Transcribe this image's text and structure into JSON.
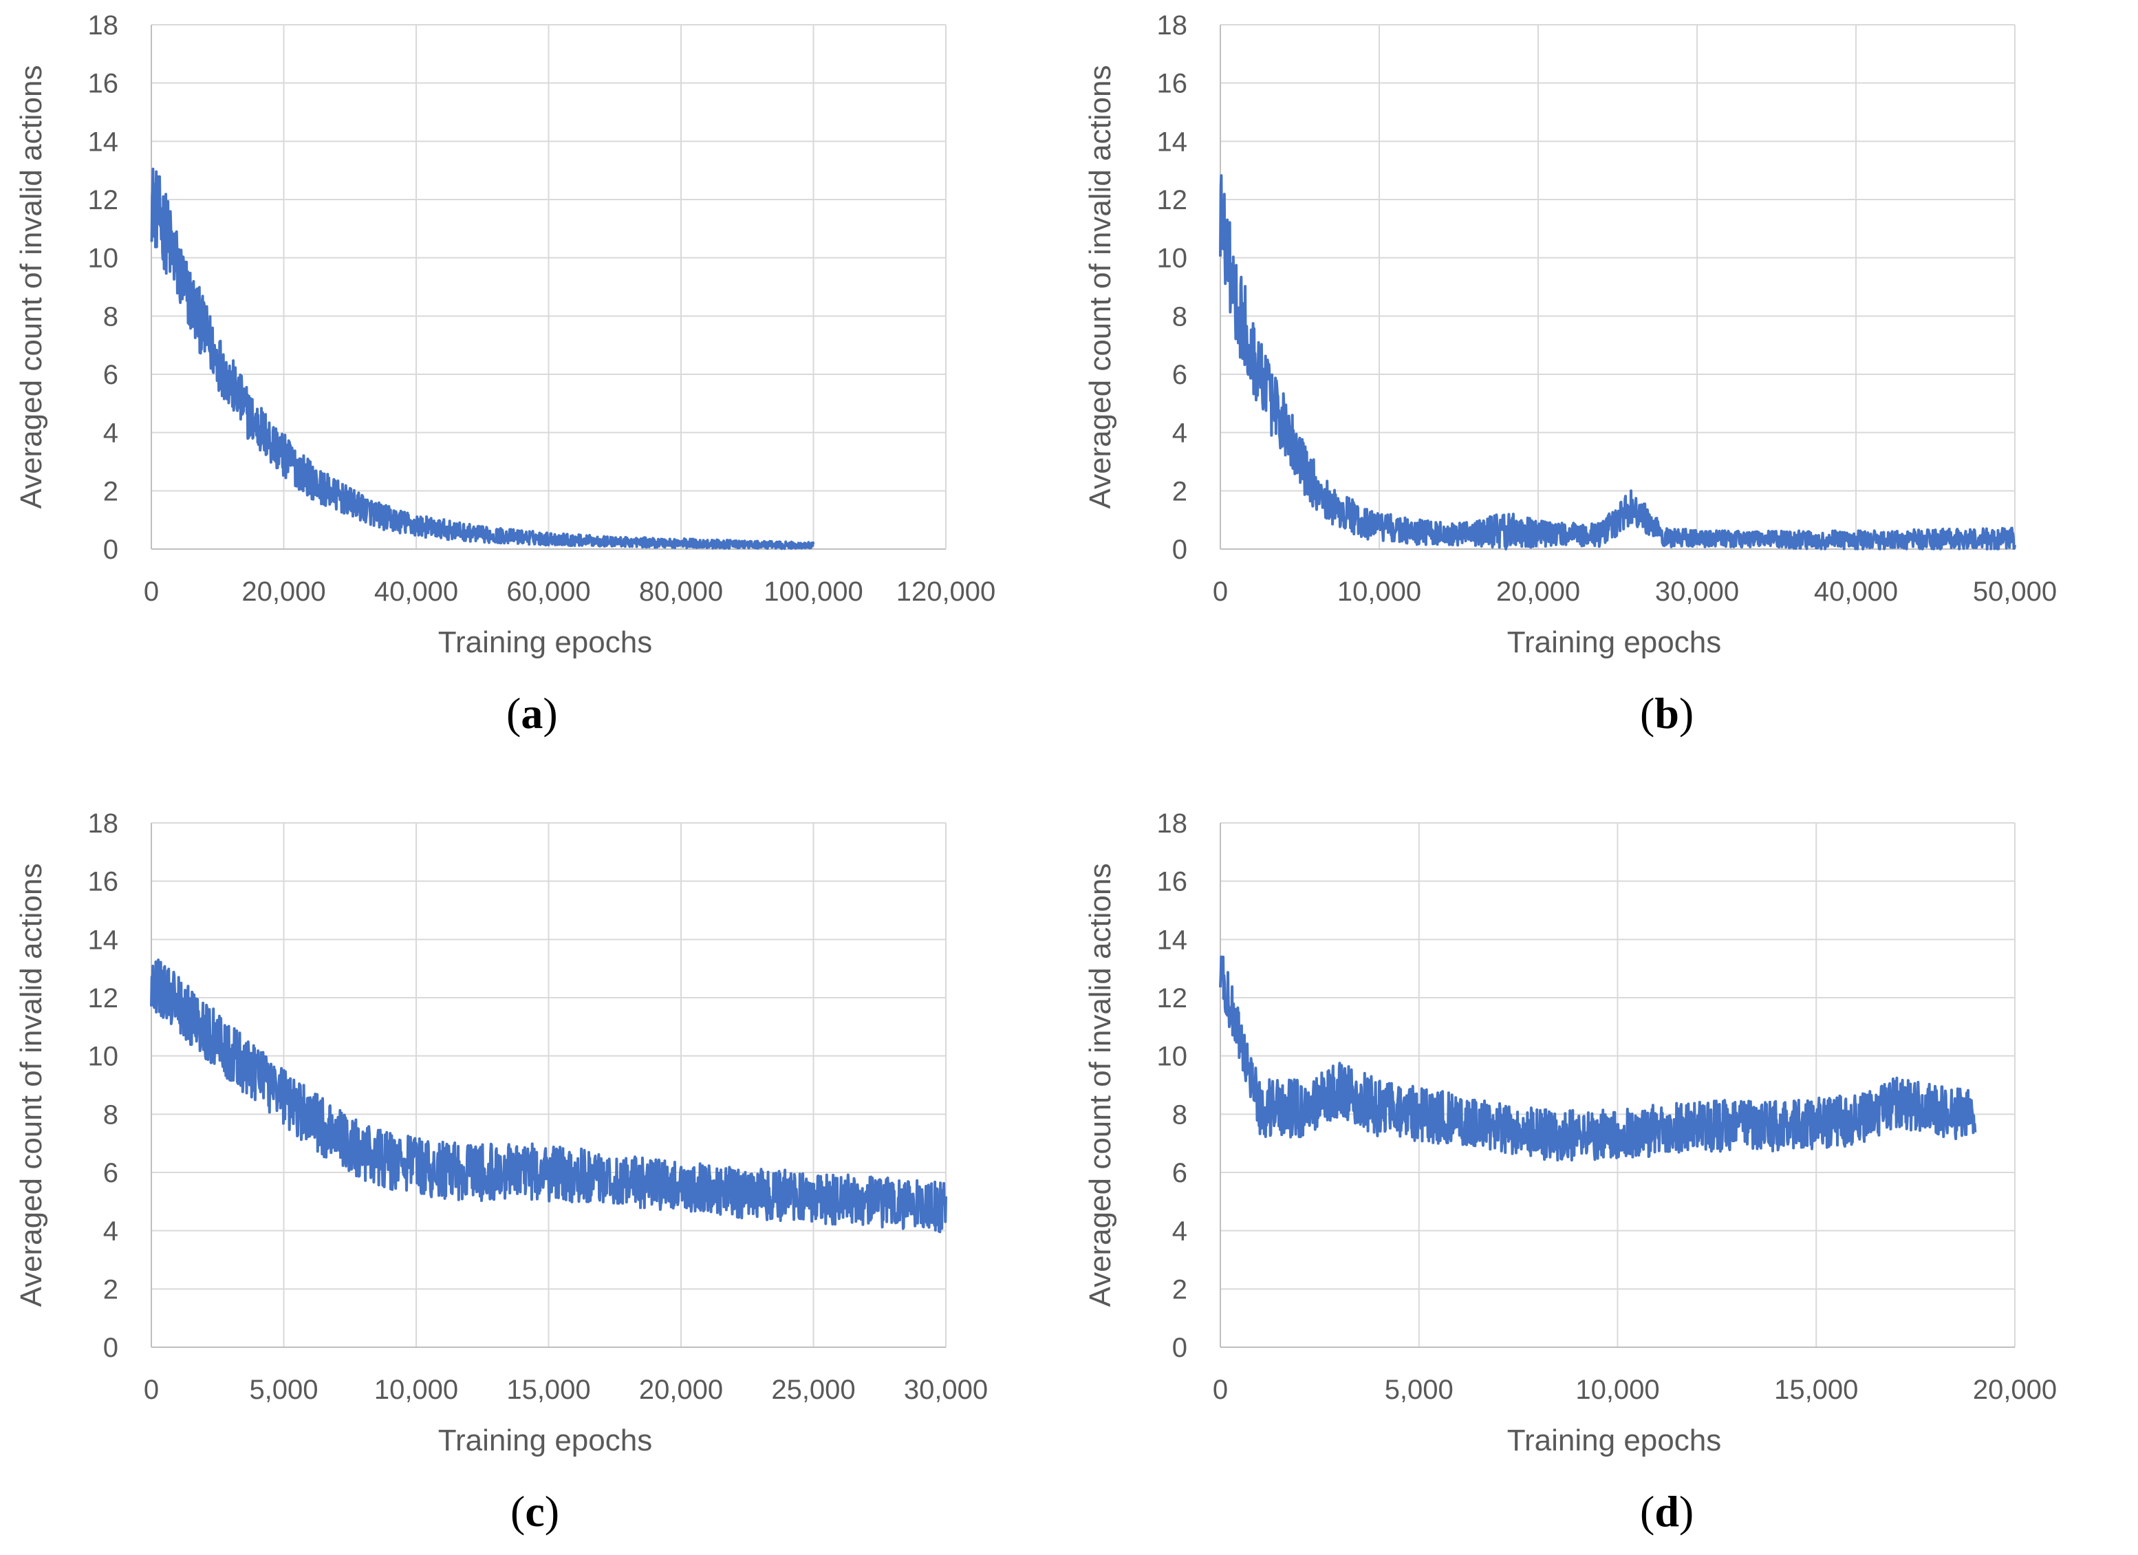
{
  "chart_data": [
    {
      "type": "line",
      "panel_label": "a",
      "xlabel": "Training epochs",
      "ylabel": "Averaged count of invalid actions",
      "xlim": [
        0,
        120000
      ],
      "ylim": [
        0,
        18
      ],
      "xticks": [
        "0",
        "20,000",
        "40,000",
        "60,000",
        "80,000",
        "100,000",
        "120,000"
      ],
      "yticks": [
        "0",
        "2",
        "4",
        "6",
        "8",
        "10",
        "12",
        "14",
        "16",
        "18"
      ],
      "grid": true,
      "series": [
        {
          "name": "Averaged count of invalid actions",
          "x": [
            0,
            2000,
            5000,
            10000,
            15000,
            20000,
            25000,
            30000,
            35000,
            40000,
            50000,
            60000,
            70000,
            80000,
            90000,
            100000
          ],
          "values": [
            12.0,
            11.0,
            9.0,
            6.5,
            4.5,
            3.2,
            2.2,
            1.6,
            1.1,
            0.8,
            0.5,
            0.35,
            0.25,
            0.2,
            0.15,
            0.12
          ],
          "noise": [
            1.3,
            1.3,
            1.1,
            0.9,
            0.8,
            0.7,
            0.55,
            0.45,
            0.4,
            0.35,
            0.25,
            0.2,
            0.15,
            0.15,
            0.12,
            0.1
          ]
        }
      ]
    },
    {
      "type": "line",
      "panel_label": "b",
      "xlabel": "Training epochs",
      "ylabel": "Averaged count of invalid actions",
      "xlim": [
        0,
        50000
      ],
      "ylim": [
        0,
        18
      ],
      "xticks": [
        "0",
        "10,000",
        "20,000",
        "30,000",
        "40,000",
        "50,000"
      ],
      "yticks": [
        "0",
        "2",
        "4",
        "6",
        "8",
        "10",
        "12",
        "14",
        "16",
        "18"
      ],
      "grid": true,
      "series": [
        {
          "name": "Averaged count of invalid actions",
          "x": [
            0,
            1000,
            2500,
            4000,
            5500,
            7000,
            9000,
            12000,
            15000,
            18000,
            21000,
            24000,
            26000,
            28000,
            32000,
            40000,
            50000
          ],
          "values": [
            11.5,
            8.5,
            6.0,
            4.2,
            2.5,
            1.5,
            0.9,
            0.6,
            0.5,
            0.6,
            0.5,
            0.5,
            1.5,
            0.4,
            0.35,
            0.3,
            0.35
          ],
          "noise": [
            1.5,
            1.4,
            1.3,
            1.0,
            0.8,
            0.6,
            0.5,
            0.4,
            0.35,
            0.6,
            0.35,
            0.4,
            0.6,
            0.3,
            0.25,
            0.3,
            0.35
          ]
        }
      ]
    },
    {
      "type": "line",
      "panel_label": "c",
      "xlabel": "Training epochs",
      "ylabel": "Averaged count of invalid actions",
      "xlim": [
        0,
        30000
      ],
      "ylim": [
        0,
        18
      ],
      "xticks": [
        "0",
        "5,000",
        "10,000",
        "15,000",
        "20,000",
        "25,000",
        "30,000"
      ],
      "yticks": [
        "0",
        "2",
        "4",
        "6",
        "8",
        "10",
        "12",
        "14",
        "16",
        "18"
      ],
      "grid": true,
      "series": [
        {
          "name": "Averaged count of invalid actions",
          "x": [
            0,
            1000,
            2500,
            4000,
            5500,
            7000,
            8500,
            10000,
            12000,
            15000,
            18000,
            21000,
            24000,
            27000,
            30000
          ],
          "values": [
            12.5,
            11.8,
            10.5,
            9.3,
            8.2,
            7.2,
            6.5,
            6.2,
            6.0,
            6.0,
            5.7,
            5.4,
            5.2,
            5.0,
            4.8
          ],
          "noise": [
            0.9,
            0.9,
            0.9,
            0.9,
            0.9,
            0.9,
            0.9,
            0.9,
            0.9,
            0.9,
            0.8,
            0.8,
            0.8,
            0.8,
            0.8
          ]
        }
      ]
    },
    {
      "type": "line",
      "panel_label": "d",
      "xlabel": "Training epochs",
      "ylabel": "Averaged count of invalid actions",
      "xlim": [
        0,
        20000
      ],
      "ylim": [
        0,
        18
      ],
      "xticks": [
        "0",
        "5,000",
        "10,000",
        "15,000",
        "20,000"
      ],
      "yticks": [
        "0",
        "2",
        "4",
        "6",
        "8",
        "10",
        "12",
        "14",
        "16",
        "18"
      ],
      "grid": true,
      "series": [
        {
          "name": "Averaged count of invalid actions",
          "x": [
            0,
            300,
            700,
            1000,
            2000,
            3000,
            4000,
            6000,
            8000,
            10000,
            12000,
            14000,
            16000,
            17000,
            19000
          ],
          "values": [
            13.0,
            11.5,
            9.5,
            8.2,
            8.2,
            8.8,
            8.2,
            7.8,
            7.3,
            7.3,
            7.6,
            7.6,
            7.8,
            8.4,
            7.9
          ],
          "noise": [
            0.8,
            0.8,
            0.8,
            0.9,
            0.9,
            0.9,
            0.9,
            0.8,
            0.8,
            0.8,
            0.8,
            0.8,
            0.8,
            0.8,
            0.8
          ]
        }
      ]
    }
  ]
}
